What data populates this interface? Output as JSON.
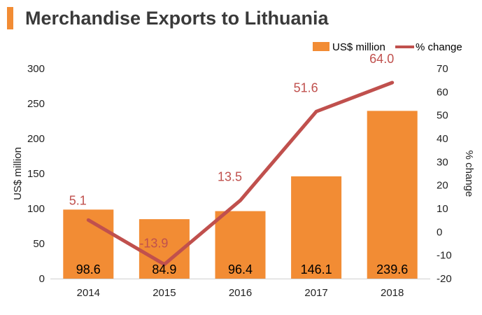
{
  "title": "Merchandise Exports to Lithuania",
  "colors": {
    "bar": "#F28C34",
    "line": "#C0504D",
    "title_accent": "#F28C34",
    "text": "#000000",
    "axis_text": "#222222"
  },
  "chart_data": {
    "type": "bar",
    "title": "Merchandise Exports to Lithuania",
    "categories": [
      "2014",
      "2015",
      "2016",
      "2017",
      "2018"
    ],
    "series": [
      {
        "name": "US$ million",
        "type": "bar",
        "axis": "left",
        "values": [
          98.6,
          84.9,
          96.4,
          146.1,
          239.6
        ],
        "labels": [
          "98.6",
          "84.9",
          "96.4",
          "146.1",
          "239.6"
        ]
      },
      {
        "name": "% change",
        "type": "line",
        "axis": "right",
        "values": [
          5.1,
          -13.9,
          13.5,
          51.6,
          64.0
        ],
        "labels": [
          "5.1",
          "-13.9",
          "13.5",
          "51.6",
          "64.0"
        ]
      }
    ],
    "ylabel": "US$ million",
    "ylim": [
      0,
      300
    ],
    "yticks": [
      0,
      50,
      100,
      150,
      200,
      250,
      300
    ],
    "y2label": "% change",
    "y2lim": [
      -20,
      70
    ],
    "y2ticks": [
      -20,
      -10,
      0,
      10,
      20,
      30,
      40,
      50,
      60,
      70
    ],
    "grid": false,
    "legend": "top-right"
  }
}
